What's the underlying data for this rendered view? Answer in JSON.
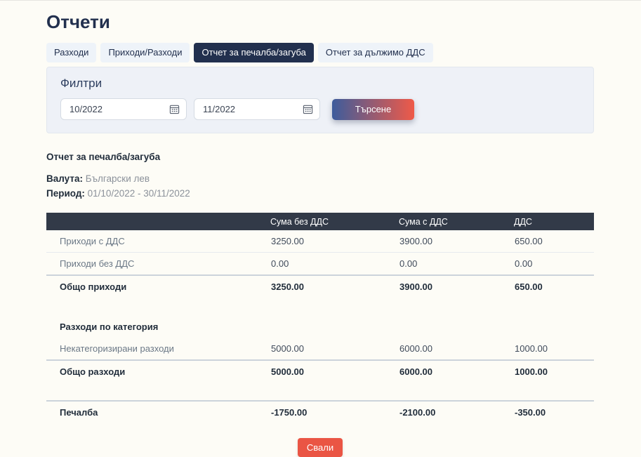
{
  "page": {
    "title": "Отчети"
  },
  "tabs": [
    {
      "id": "expenses",
      "label": "Разходи",
      "active": false
    },
    {
      "id": "income-expenses",
      "label": "Приходи/Разходи",
      "active": false
    },
    {
      "id": "profit-loss",
      "label": "Отчет за печалба/загуба",
      "active": true
    },
    {
      "id": "vat-due",
      "label": "Отчет за дължимо ДДС",
      "active": false
    }
  ],
  "filters": {
    "title": "Филтри",
    "from_value": "10/2022",
    "to_value": "11/2022",
    "search_label": "Търсене"
  },
  "report": {
    "title": "Отчет за печалба/загуба",
    "currency_label": "Валута:",
    "currency_value": "Български лев",
    "period_label": "Период:",
    "period_value": "01/10/2022 - 30/11/2022"
  },
  "table": {
    "headers": [
      "",
      "Сума без ДДС",
      "Сума с ДДС",
      "ДДС"
    ],
    "rows": [
      {
        "label": "Приходи с ДДС",
        "values": [
          "3250.00",
          "3900.00",
          "650.00"
        ],
        "style": "normal",
        "divider": "light"
      },
      {
        "label": "Приходи без ДДС",
        "values": [
          "0.00",
          "0.00",
          "0.00"
        ],
        "style": "normal",
        "divider": "heavy"
      },
      {
        "label": "Общо приходи",
        "values": [
          "3250.00",
          "3900.00",
          "650.00"
        ],
        "style": "bold",
        "divider": "none"
      },
      {
        "label": "",
        "values": [
          "",
          "",
          ""
        ],
        "style": "spacer",
        "divider": "none"
      },
      {
        "label": "Разходи по категория",
        "values": [
          "",
          "",
          ""
        ],
        "style": "bold",
        "divider": "none"
      },
      {
        "label": "Некатегоризирани разходи",
        "values": [
          "5000.00",
          "6000.00",
          "1000.00"
        ],
        "style": "normal",
        "divider": "heavy"
      },
      {
        "label": "Общо разходи",
        "values": [
          "5000.00",
          "6000.00",
          "1000.00"
        ],
        "style": "bold",
        "divider": "none"
      },
      {
        "label": "",
        "values": [
          "",
          "",
          ""
        ],
        "style": "spacer",
        "divider": "heavy"
      },
      {
        "label": "Печалба",
        "values": [
          "-1750.00",
          "-2100.00",
          "-350.00"
        ],
        "style": "bold",
        "divider": "none"
      }
    ]
  },
  "download": {
    "label": "Свали"
  },
  "colors": {
    "active_tab_bg": "#22304e",
    "inactive_tab_bg": "#eef3f9",
    "filter_panel_bg": "#eef1f7",
    "table_header_bg": "#323a48",
    "search_gradient_start": "#3d5c9c",
    "search_gradient_end": "#ef5a48",
    "download_button_bg": "#ea5544"
  }
}
